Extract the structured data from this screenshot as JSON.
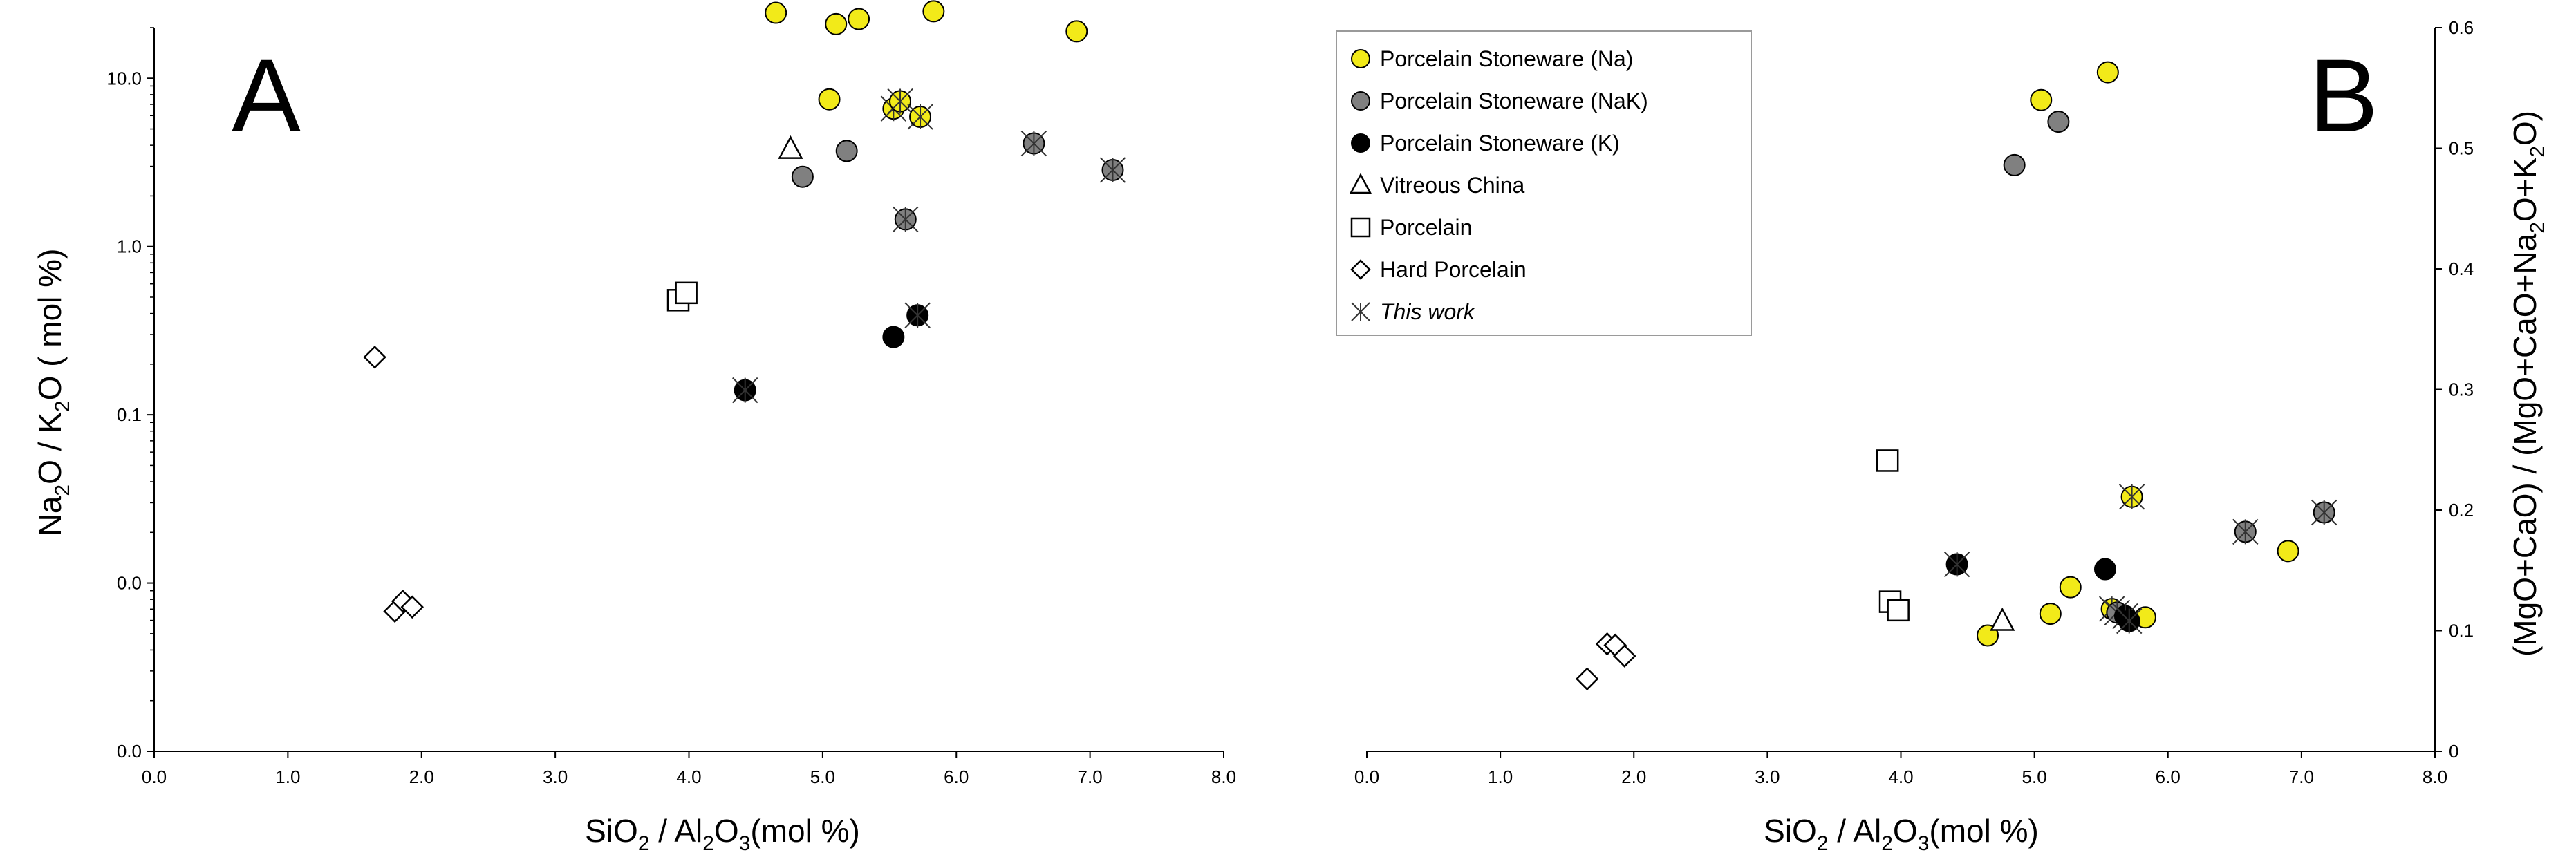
{
  "chart_data": [
    {
      "panel": "A",
      "type": "scatter",
      "yscale": "log",
      "xlabel": {
        "base": "SiO",
        "sub1": "2",
        "mid": " / Al",
        "sub2": "2",
        "mid2": "O",
        "sub3": "3",
        "tail": "(mol %)"
      },
      "ylabel": {
        "base": "Na",
        "sub1": "2",
        "mid": "O / K",
        "sub2": "2",
        "tail": "O ( mol %)"
      },
      "xlim": [
        0,
        8
      ],
      "ylim": [
        0.001,
        20
      ],
      "x_ticks": [
        "0.0",
        "1.0",
        "2.0",
        "3.0",
        "4.0",
        "5.0",
        "6.0",
        "7.0",
        "8.0"
      ],
      "y_ticks": [
        {
          "value": 0.001,
          "label": "0.0"
        },
        {
          "value": 0.01,
          "label": "0.0"
        },
        {
          "value": 0.1,
          "label": "0.1"
        },
        {
          "value": 1,
          "label": "1.0"
        },
        {
          "value": 10,
          "label": "10.0"
        }
      ],
      "series": [
        {
          "name": "Porcelain Stoneware (Na)",
          "marker": "circle",
          "fill": "#f2ea19",
          "points": [
            [
              4.65,
              24.5
            ],
            [
              5.1,
              21
            ],
            [
              5.27,
              22.5
            ],
            [
              5.83,
              25
            ],
            [
              6.9,
              19
            ],
            [
              5.05,
              7.5
            ],
            [
              5.53,
              6.6
            ],
            [
              5.58,
              7.3
            ],
            [
              5.73,
              5.9
            ]
          ],
          "this_work": [
            false,
            false,
            false,
            false,
            false,
            false,
            true,
            true,
            true
          ]
        },
        {
          "name": "Porcelain Stoneware (NaK)",
          "marker": "circle",
          "fill": "#808080",
          "points": [
            [
              4.85,
              2.6
            ],
            [
              5.18,
              3.7
            ],
            [
              5.62,
              1.45
            ],
            [
              6.58,
              4.1
            ],
            [
              7.17,
              2.85
            ]
          ],
          "this_work": [
            false,
            false,
            true,
            true,
            true
          ]
        },
        {
          "name": "Porcelain Stoneware (K)",
          "marker": "circle",
          "fill": "#000000",
          "points": [
            [
              4.42,
              0.14
            ],
            [
              5.53,
              0.29
            ],
            [
              5.71,
              0.39
            ]
          ],
          "this_work": [
            true,
            false,
            true
          ]
        },
        {
          "name": "Vitreous China",
          "marker": "triangle",
          "fill": "none",
          "points": [
            [
              4.76,
              3.8
            ]
          ],
          "this_work": [
            false
          ]
        },
        {
          "name": "Porcelain",
          "marker": "square",
          "fill": "none",
          "points": [
            [
              3.92,
              0.48
            ],
            [
              3.98,
              0.53
            ]
          ],
          "this_work": [
            false,
            false
          ]
        },
        {
          "name": "Hard Porcelain",
          "marker": "diamond",
          "fill": "none",
          "points": [
            [
              1.65,
              0.22
            ],
            [
              1.8,
              0.0068
            ],
            [
              1.86,
              0.0078
            ],
            [
              1.93,
              0.0072
            ]
          ],
          "this_work": [
            false,
            false,
            false,
            false
          ]
        }
      ]
    },
    {
      "panel": "B",
      "type": "scatter",
      "yscale": "linear",
      "xlabel": {
        "base": "SiO",
        "sub1": "2",
        "mid": " / Al",
        "sub2": "2",
        "mid2": "O",
        "sub3": "3",
        "tail": "(mol %)"
      },
      "ylabel": {
        "text": "(MgO+CaO) / (MgO+CaO+Na",
        "sub1": "2",
        "mid": "O+K",
        "sub2": "2",
        "tail": "O)"
      },
      "xlim": [
        0,
        8
      ],
      "ylim": [
        0,
        0.6
      ],
      "x_ticks": [
        "0.0",
        "1.0",
        "2.0",
        "3.0",
        "4.0",
        "5.0",
        "6.0",
        "7.0",
        "8.0"
      ],
      "y_ticks": [
        "0",
        "0.1",
        "0.2",
        "0.3",
        "0.4",
        "0.5",
        "0.6"
      ],
      "series": [
        {
          "name": "Porcelain Stoneware (Na)",
          "marker": "circle",
          "fill": "#f2ea19",
          "points": [
            [
              5.05,
              0.54
            ],
            [
              5.55,
              0.563
            ],
            [
              4.65,
              0.096
            ],
            [
              5.12,
              0.114
            ],
            [
              5.27,
              0.136
            ],
            [
              5.58,
              0.118
            ],
            [
              5.73,
              0.211
            ],
            [
              5.83,
              0.111
            ],
            [
              6.9,
              0.166
            ]
          ],
          "this_work": [
            false,
            false,
            false,
            false,
            false,
            true,
            true,
            false,
            false
          ]
        },
        {
          "name": "Porcelain Stoneware (NaK)",
          "marker": "circle",
          "fill": "#808080",
          "points": [
            [
              4.85,
              0.486
            ],
            [
              5.18,
              0.522
            ],
            [
              5.62,
              0.115
            ],
            [
              6.58,
              0.182
            ],
            [
              7.17,
              0.198
            ]
          ],
          "this_work": [
            false,
            false,
            true,
            true,
            true
          ]
        },
        {
          "name": "Porcelain Stoneware (K)",
          "marker": "circle",
          "fill": "#000000",
          "points": [
            [
              4.42,
              0.155
            ],
            [
              5.53,
              0.151
            ],
            [
              5.68,
              0.112
            ],
            [
              5.71,
              0.108
            ]
          ],
          "this_work": [
            true,
            false,
            true,
            true
          ]
        },
        {
          "name": "Vitreous China",
          "marker": "triangle",
          "fill": "none",
          "points": [
            [
              4.76,
              0.108
            ]
          ],
          "this_work": [
            false
          ]
        },
        {
          "name": "Porcelain",
          "marker": "square",
          "fill": "none",
          "points": [
            [
              3.9,
              0.241
            ],
            [
              3.92,
              0.124
            ],
            [
              3.98,
              0.117
            ]
          ],
          "this_work": [
            false,
            false,
            false
          ]
        },
        {
          "name": "Hard Porcelain",
          "marker": "diamond",
          "fill": "none",
          "points": [
            [
              1.65,
              0.06
            ],
            [
              1.8,
              0.089
            ],
            [
              1.86,
              0.088
            ],
            [
              1.93,
              0.079
            ]
          ],
          "this_work": [
            false,
            false,
            false,
            false
          ]
        }
      ],
      "legend": {
        "placement": "top-left",
        "entries": [
          {
            "label": "Porcelain Stoneware (Na)",
            "marker": "circle",
            "fill": "#f2ea19"
          },
          {
            "label": "Porcelain Stoneware (NaK)",
            "marker": "circle",
            "fill": "#808080"
          },
          {
            "label": "Porcelain Stoneware (K)",
            "marker": "circle",
            "fill": "#000000"
          },
          {
            "label": "Vitreous China",
            "marker": "triangle",
            "fill": "none"
          },
          {
            "label": "Porcelain",
            "marker": "square",
            "fill": "none"
          },
          {
            "label": "Hard Porcelain",
            "marker": "diamond",
            "fill": "none"
          },
          {
            "label": "This work",
            "marker": "asterisk",
            "fill": "none",
            "italic": true
          }
        ]
      }
    }
  ],
  "colors": {
    "axis": "#000000",
    "na_fill": "#f2ea19",
    "nak_fill": "#808080",
    "k_fill": "#000000"
  }
}
